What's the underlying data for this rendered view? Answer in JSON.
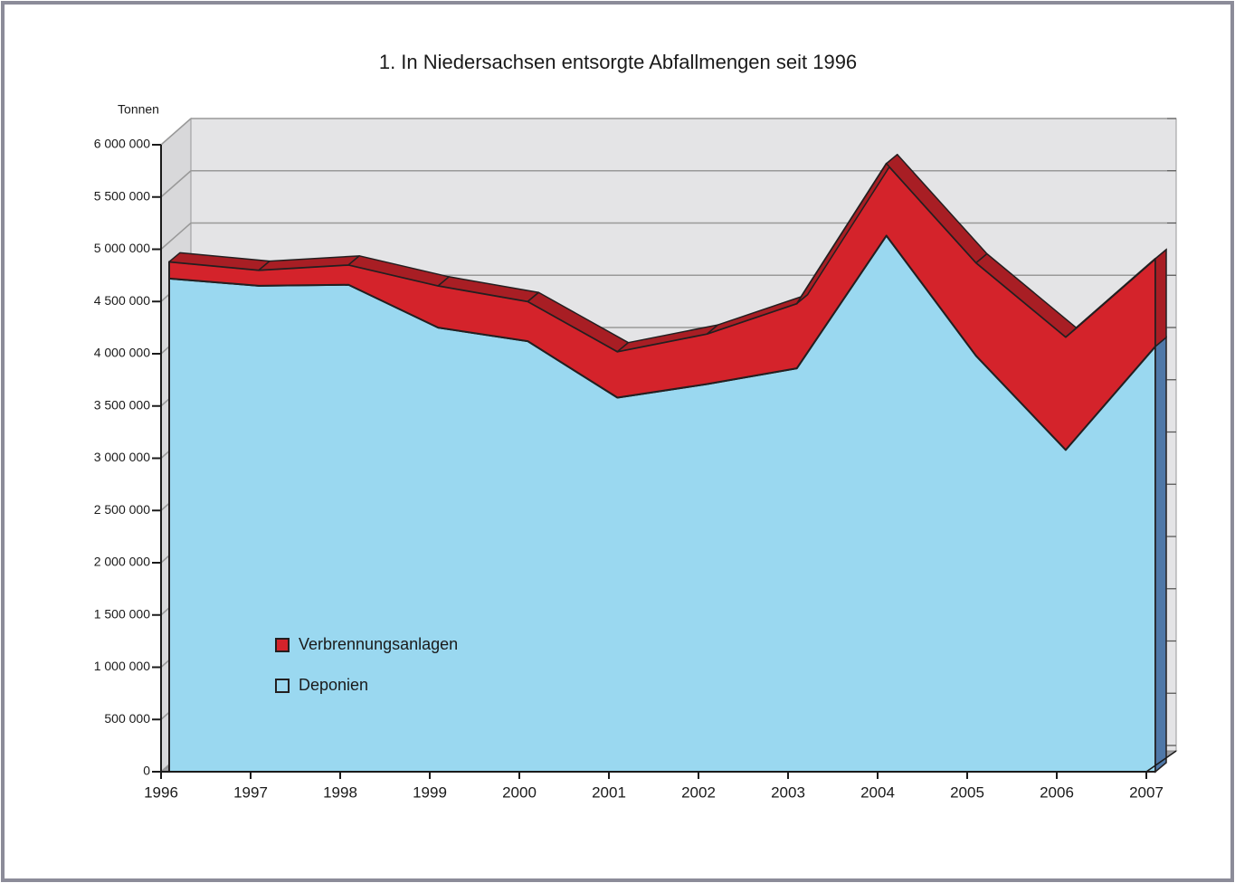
{
  "chart_data": {
    "type": "area",
    "stacked": true,
    "title": "1. In Niedersachsen entsorgte Abfallmengen seit 1996",
    "y_label": "Tonnen",
    "categories": [
      "1996",
      "1997",
      "1998",
      "1999",
      "2000",
      "2001",
      "2002",
      "2003",
      "2004",
      "2005",
      "2006",
      "2007"
    ],
    "series": [
      {
        "name": "Deponien",
        "color": "#9ad8f0",
        "values": [
          4720000,
          4650000,
          4660000,
          4250000,
          4120000,
          3580000,
          3710000,
          3860000,
          5130000,
          3980000,
          3080000,
          4070000
        ]
      },
      {
        "name": "Verbrennungsanlagen",
        "color": "#d4232b",
        "values": [
          160000,
          150000,
          190000,
          400000,
          380000,
          440000,
          480000,
          620000,
          690000,
          890000,
          1080000,
          840000
        ]
      }
    ],
    "ylim": [
      0,
      6000000
    ],
    "yticks": [
      0,
      {
        "value": 500000,
        "label": "500 000"
      },
      {
        "value": 1000000,
        "label": "1 000 000"
      },
      {
        "value": 1500000,
        "label": "1 500 000"
      },
      {
        "value": 2000000,
        "label": "2 000 000"
      },
      {
        "value": 2500000,
        "label": "2 500 000"
      },
      {
        "value": 3000000,
        "label": "3 000 000"
      },
      {
        "value": 3500000,
        "label": "3 500 000"
      },
      {
        "value": 4000000,
        "label": "4 000 000"
      },
      {
        "value": 4500000,
        "label": "4 500 000"
      },
      {
        "value": 5000000,
        "label": "5 000 000"
      },
      {
        "value": 5500000,
        "label": "5 500 000"
      },
      {
        "value": 6000000,
        "label": "6 000 000"
      }
    ],
    "grid": true
  }
}
